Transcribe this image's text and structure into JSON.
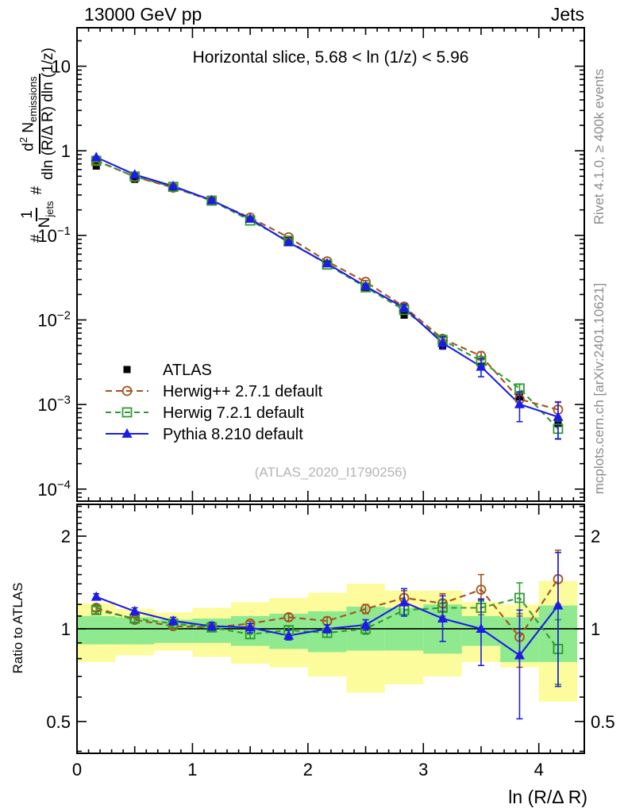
{
  "header": {
    "left": "13000 GeV pp",
    "right": "Jets"
  },
  "side_notes": {
    "top": "Rivet 4.1.0, ≥ 400k events",
    "bottom": "mcplots.cern.ch [arXiv:2401.10621]"
  },
  "watermark": "(ATLAS_2020_I1790256)",
  "colors": {
    "atlas": "#000000",
    "herwigpp": "#a5521d",
    "herwig7": "#2f9b2f",
    "pythia": "#1c1ce8",
    "band_yellow": "#fcfc9c",
    "band_green": "#8fe98f",
    "frame": "#000000",
    "gray_text": "#8c8c8c",
    "watermark_gray": "#b4b4b4"
  },
  "chart_data": {
    "type": "line",
    "title": "Horizontal slice, 5.68 < ln (1/z) < 5.96",
    "x_label": "ln (R/Δ R)",
    "ratio_label": "Ratio to ATLAS",
    "x_range": [
      0,
      4.394
    ],
    "x_major_ticks": [
      0,
      1,
      2,
      3,
      4
    ],
    "main_y": {
      "scale": "log",
      "range": [
        7.2e-05,
        28.5
      ],
      "tick_labels": [
        {
          "v": 10,
          "b": "10"
        },
        {
          "v": 1,
          "b": "1"
        },
        {
          "v": 0.1,
          "b": "10",
          "e": "−1"
        },
        {
          "v": 0.01,
          "b": "10",
          "e": "−2"
        },
        {
          "v": 0.001,
          "b": "10",
          "e": "−3"
        },
        {
          "v": 0.0001,
          "b": "10",
          "e": "−4"
        }
      ]
    },
    "ratio_y": {
      "scale": "log",
      "range": [
        0.394,
        2.537
      ],
      "tick_labels": [
        {
          "v": 2,
          "b": "2"
        },
        {
          "v": 1,
          "b": "1"
        },
        {
          "v": 0.5,
          "b": "0.5"
        }
      ],
      "minor_ticks": [
        0.4,
        0.6,
        0.7,
        0.8,
        0.9,
        1.1,
        1.2,
        1.3,
        1.4,
        1.5,
        1.6,
        1.7,
        1.8,
        1.9,
        2.1,
        2.2,
        2.3,
        2.4,
        2.5
      ]
    },
    "y_label_parts": {
      "hash1": "#",
      "frac1_num": "1",
      "frac1_den_base": "N",
      "frac1_den_sub": "jets",
      "hash2": "#",
      "frac2_num_base": "d",
      "frac2_num_sup": "2",
      "frac2_num_rest": " N",
      "frac2_num_sub": "emissions",
      "frac2_den": "dln (R/Δ R) dln (1/z)"
    },
    "x": [
      0.1667,
      0.5,
      0.8333,
      1.1667,
      1.5,
      1.8333,
      2.1667,
      2.5,
      2.8333,
      3.1667,
      3.5,
      3.8333,
      4.1667
    ],
    "bin_edges": [
      0,
      0.3333,
      0.6667,
      1.0,
      1.3333,
      1.6667,
      2.0,
      2.3333,
      2.6667,
      3.0,
      3.3333,
      3.6667,
      4.0,
      4.3333
    ],
    "series": [
      {
        "name": "ATLAS",
        "role": "data",
        "color": "#000000",
        "marker": "filled-square",
        "values": [
          0.66,
          0.46,
          0.36,
          0.255,
          0.156,
          0.087,
          0.0465,
          0.0243,
          0.0114,
          0.00495,
          0.0028,
          0.00123,
          0.0006
        ],
        "rel_err": 0.025
      },
      {
        "name": "Herwig++ 2.7.1 default",
        "role": "mc",
        "color": "#a5521d",
        "marker": "open-circle",
        "dash": "8 5",
        "ratio": [
          1.17,
          1.07,
          1.02,
          1.01,
          1.04,
          1.09,
          1.06,
          1.16,
          1.26,
          1.21,
          1.34,
          0.94,
          1.45
        ],
        "ratio_err": [
          [
            1.14,
            1.2
          ],
          [
            1.05,
            1.09
          ],
          [
            1.0,
            1.04
          ],
          [
            0.99,
            1.03
          ],
          [
            1.02,
            1.06
          ],
          [
            1.06,
            1.12
          ],
          [
            1.03,
            1.09
          ],
          [
            1.12,
            1.2
          ],
          [
            1.19,
            1.33
          ],
          [
            1.14,
            1.3
          ],
          [
            1.24,
            1.5
          ],
          [
            0.75,
            1.1
          ],
          [
            1.2,
            1.8
          ]
        ]
      },
      {
        "name": "Herwig 7.2.1 default",
        "role": "mc",
        "color": "#2f9b2f",
        "marker": "open-square",
        "dash": "7 5",
        "ratio": [
          1.15,
          1.08,
          1.04,
          1.01,
          0.96,
          0.99,
          0.97,
          1.0,
          1.15,
          1.17,
          1.17,
          1.26,
          0.86
        ],
        "ratio_err": [
          [
            1.12,
            1.18
          ],
          [
            1.05,
            1.11
          ],
          [
            1.01,
            1.07
          ],
          [
            0.98,
            1.04
          ],
          [
            0.93,
            0.99
          ],
          [
            0.96,
            1.02
          ],
          [
            0.94,
            1.0
          ],
          [
            0.96,
            1.04
          ],
          [
            1.1,
            1.2
          ],
          [
            1.1,
            1.24
          ],
          [
            1.11,
            1.23
          ],
          [
            1.12,
            1.41
          ],
          [
            0.66,
            1.07
          ]
        ]
      },
      {
        "name": "Pythia 8.210 default",
        "role": "mc",
        "color": "#1c1ce8",
        "marker": "filled-triangle",
        "dash": null,
        "ratio": [
          1.27,
          1.14,
          1.06,
          1.02,
          1.01,
          0.95,
          1.0,
          1.03,
          1.22,
          1.08,
          1.0,
          0.82,
          1.19
        ],
        "ratio_err": [
          [
            1.24,
            1.3
          ],
          [
            1.11,
            1.17
          ],
          [
            1.03,
            1.09
          ],
          [
            0.99,
            1.05
          ],
          [
            0.97,
            1.04
          ],
          [
            0.92,
            0.99
          ],
          [
            0.97,
            1.03
          ],
          [
            0.99,
            1.07
          ],
          [
            1.1,
            1.35
          ],
          [
            0.91,
            1.28
          ],
          [
            0.76,
            1.25
          ],
          [
            0.51,
            1.15
          ],
          [
            0.65,
            1.77
          ]
        ]
      }
    ],
    "bands": {
      "yellow": [
        [
          0.78,
          1.21
        ],
        [
          0.82,
          1.16
        ],
        [
          0.85,
          1.13
        ],
        [
          0.81,
          1.17
        ],
        [
          0.77,
          1.22
        ],
        [
          0.75,
          1.26
        ],
        [
          0.7,
          1.31
        ],
        [
          0.62,
          1.4
        ],
        [
          0.66,
          1.33
        ],
        [
          0.7,
          1.33
        ],
        [
          0.78,
          1.22
        ],
        [
          0.75,
          1.2
        ],
        [
          0.58,
          1.43
        ]
      ],
      "green": [
        [
          0.89,
          1.1
        ],
        [
          0.89,
          1.09
        ],
        [
          0.9,
          1.07
        ],
        [
          0.9,
          1.08
        ],
        [
          0.88,
          1.1
        ],
        [
          0.86,
          1.12
        ],
        [
          0.84,
          1.14
        ],
        [
          0.85,
          1.18
        ],
        [
          0.85,
          1.17
        ],
        [
          0.83,
          1.2
        ],
        [
          0.88,
          1.1
        ],
        [
          0.78,
          1.09
        ],
        [
          0.78,
          1.19
        ]
      ]
    }
  }
}
